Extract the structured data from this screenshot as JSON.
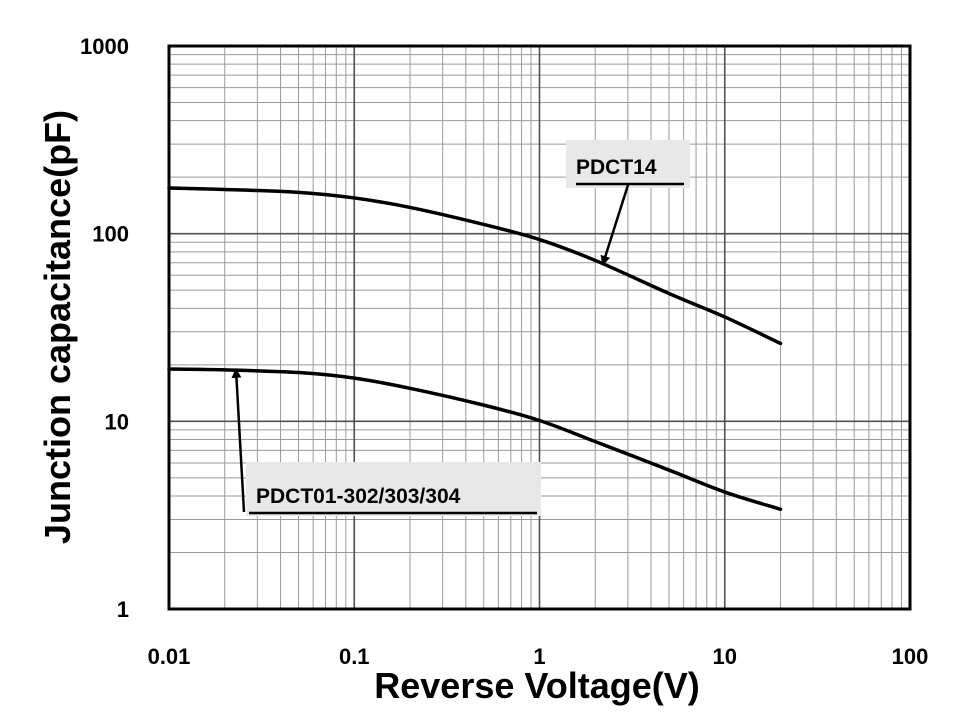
{
  "chart_data": {
    "type": "line",
    "title": "",
    "xlabel": "Reverse Voltage(V)",
    "ylabel": "Junction capacitance(pF)",
    "xscale": "log",
    "yscale": "log",
    "xlim": [
      0.01,
      100
    ],
    "ylim": [
      1,
      1000
    ],
    "grid": true,
    "x_ticks": [
      0.01,
      0.1,
      1,
      10,
      100
    ],
    "x_tick_labels": [
      "0.01",
      "0.1",
      "1",
      "10",
      "100"
    ],
    "y_ticks": [
      1,
      10,
      100,
      1000
    ],
    "y_tick_labels": [
      "1",
      "10",
      "100",
      "1000"
    ],
    "series": [
      {
        "name": "PDCT14",
        "x": [
          0.01,
          0.02,
          0.05,
          0.1,
          0.2,
          0.5,
          1,
          2,
          5,
          10,
          20
        ],
        "y": [
          175,
          172,
          166,
          155,
          138,
          112,
          93,
          72,
          48,
          36,
          26
        ]
      },
      {
        "name": "PDCT01-302/303/304",
        "x": [
          0.01,
          0.02,
          0.05,
          0.1,
          0.2,
          0.5,
          1,
          2,
          5,
          10,
          20
        ],
        "y": [
          19,
          18.8,
          18.2,
          17,
          15,
          12.2,
          10.1,
          7.8,
          5.5,
          4.2,
          3.4
        ]
      }
    ],
    "annotations": [
      {
        "text": "PDCT14",
        "series": "PDCT14",
        "arrow_x": 2.2,
        "arrow_y": 69
      },
      {
        "text": "PDCT01-302/303/304",
        "series": "PDCT01-302/303/304",
        "arrow_x": 0.023,
        "arrow_y": 18.8
      }
    ]
  }
}
